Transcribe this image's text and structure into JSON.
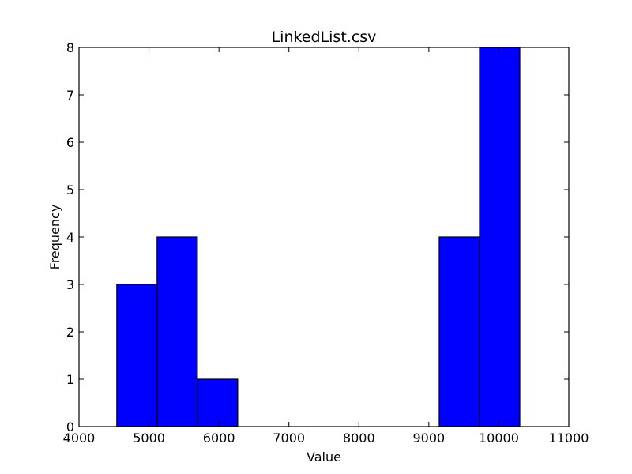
{
  "chart_data": {
    "type": "bar",
    "histogram": true,
    "title": "LinkedList.csv",
    "xlabel": "Value",
    "ylabel": "Frequency",
    "xlim": [
      4000,
      11000
    ],
    "ylim": [
      0,
      8
    ],
    "xticks": [
      "4000",
      "5000",
      "6000",
      "7000",
      "8000",
      "9000",
      "10000",
      "11000"
    ],
    "yticks": [
      "0",
      "1",
      "2",
      "3",
      "4",
      "5",
      "6",
      "7",
      "8"
    ],
    "bins": [
      {
        "start": 4540,
        "end": 5116,
        "count": 3
      },
      {
        "start": 5116,
        "end": 5692,
        "count": 4
      },
      {
        "start": 5692,
        "end": 6268,
        "count": 1
      },
      {
        "start": 6268,
        "end": 6844,
        "count": 0
      },
      {
        "start": 6844,
        "end": 7420,
        "count": 0
      },
      {
        "start": 7420,
        "end": 7996,
        "count": 0
      },
      {
        "start": 7996,
        "end": 8572,
        "count": 0
      },
      {
        "start": 8572,
        "end": 9148,
        "count": 0
      },
      {
        "start": 9148,
        "end": 9724,
        "count": 4
      },
      {
        "start": 9724,
        "end": 10300,
        "count": 8
      }
    ],
    "bar_color": "#0000ff",
    "grid": false
  }
}
